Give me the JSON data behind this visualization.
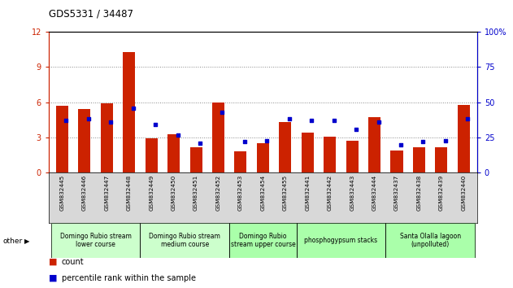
{
  "title": "GDS5331 / 34487",
  "samples": [
    "GSM832445",
    "GSM832446",
    "GSM832447",
    "GSM832448",
    "GSM832449",
    "GSM832450",
    "GSM832451",
    "GSM832452",
    "GSM832453",
    "GSM832454",
    "GSM832455",
    "GSM832441",
    "GSM832442",
    "GSM832443",
    "GSM832444",
    "GSM832437",
    "GSM832438",
    "GSM832439",
    "GSM832440"
  ],
  "count_values": [
    5.7,
    5.4,
    5.9,
    10.3,
    2.9,
    3.3,
    2.2,
    6.0,
    1.8,
    2.5,
    4.3,
    3.4,
    3.1,
    2.7,
    4.7,
    1.9,
    2.2,
    2.2,
    5.8
  ],
  "percentile_values": [
    37,
    38,
    36,
    46,
    34,
    27,
    21,
    43,
    22,
    23,
    38,
    37,
    37,
    31,
    36,
    20,
    22,
    23,
    38
  ],
  "ylim_left": [
    0,
    12
  ],
  "ylim_right": [
    0,
    100
  ],
  "yticks_left": [
    0,
    3,
    6,
    9,
    12
  ],
  "yticks_right": [
    0,
    25,
    50,
    75,
    100
  ],
  "groups": [
    {
      "label": "Domingo Rubio stream\nlower course",
      "start": 0,
      "end": 4
    },
    {
      "label": "Domingo Rubio stream\nmedium course",
      "start": 4,
      "end": 8
    },
    {
      "label": "Domingo Rubio\nstream upper course",
      "start": 8,
      "end": 11
    },
    {
      "label": "phosphogypsum stacks",
      "start": 11,
      "end": 15
    },
    {
      "label": "Santa Olalla lagoon\n(unpolluted)",
      "start": 15,
      "end": 19
    }
  ],
  "group_colors": [
    "#ccffcc",
    "#ccffcc",
    "#aaffaa",
    "#aaffaa",
    "#aaffaa"
  ],
  "bar_color": "#cc2200",
  "dot_color": "#0000cc",
  "left_axis_color": "#cc2200",
  "right_axis_color": "#0000cc",
  "grid_color": "#888888",
  "legend_count_label": "count",
  "legend_pct_label": "percentile rank within the sample",
  "other_label": "other"
}
